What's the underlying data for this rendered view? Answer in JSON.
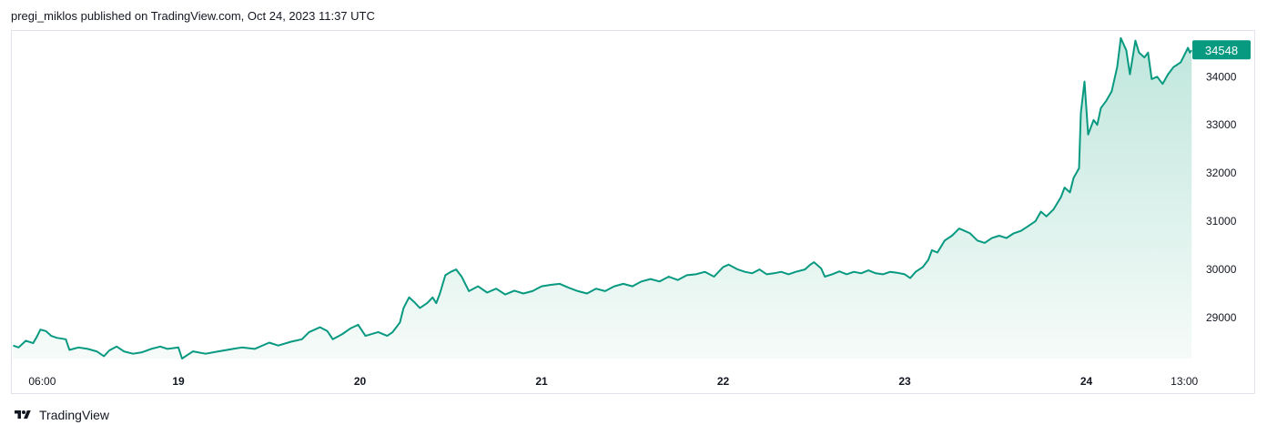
{
  "header": {
    "attribution": "pregi_miklos published on TradingView.com, Oct 24, 2023 11:37 UTC"
  },
  "footer": {
    "brand": "TradingView",
    "logo_icon": "tradingview-logo-icon"
  },
  "colors": {
    "line": "#089981",
    "fill_top": "#bfe6dc",
    "fill_bottom": "#f6fbf9",
    "badge": "#089981",
    "badge_text": "#ffffff",
    "text": "#131722",
    "border": "#e0e3eb"
  },
  "chart_data": {
    "type": "area",
    "title": "",
    "xlabel": "",
    "ylabel": "",
    "ylim": [
      28150,
      34950
    ],
    "y_ticks": [
      29000,
      30000,
      31000,
      32000,
      33000,
      34000
    ],
    "x_ticks": [
      {
        "label": "06:00",
        "x": 0.25,
        "bold": false
      },
      {
        "label": "19",
        "x": 1.0,
        "bold": true
      },
      {
        "label": "20",
        "x": 2.0,
        "bold": true
      },
      {
        "label": "21",
        "x": 3.0,
        "bold": true
      },
      {
        "label": "22",
        "x": 4.0,
        "bold": true
      },
      {
        "label": "23",
        "x": 5.0,
        "bold": true
      },
      {
        "label": "24",
        "x": 6.0,
        "bold": true
      },
      {
        "label": "13:00",
        "x": 6.54,
        "bold": false
      }
    ],
    "x_unit": "days since Oct 18 00:00 UTC",
    "last_price": 34548,
    "points": [
      [
        0.09,
        28420
      ],
      [
        0.12,
        28380
      ],
      [
        0.16,
        28520
      ],
      [
        0.2,
        28470
      ],
      [
        0.22,
        28600
      ],
      [
        0.24,
        28750
      ],
      [
        0.27,
        28720
      ],
      [
        0.3,
        28620
      ],
      [
        0.33,
        28580
      ],
      [
        0.38,
        28550
      ],
      [
        0.4,
        28330
      ],
      [
        0.45,
        28380
      ],
      [
        0.5,
        28350
      ],
      [
        0.55,
        28300
      ],
      [
        0.59,
        28200
      ],
      [
        0.62,
        28320
      ],
      [
        0.66,
        28400
      ],
      [
        0.7,
        28300
      ],
      [
        0.75,
        28250
      ],
      [
        0.8,
        28280
      ],
      [
        0.85,
        28350
      ],
      [
        0.9,
        28400
      ],
      [
        0.94,
        28350
      ],
      [
        1.0,
        28380
      ],
      [
        1.02,
        28150
      ],
      [
        1.08,
        28300
      ],
      [
        1.15,
        28250
      ],
      [
        1.22,
        28300
      ],
      [
        1.3,
        28350
      ],
      [
        1.35,
        28380
      ],
      [
        1.42,
        28350
      ],
      [
        1.5,
        28480
      ],
      [
        1.55,
        28420
      ],
      [
        1.62,
        28500
      ],
      [
        1.68,
        28550
      ],
      [
        1.72,
        28700
      ],
      [
        1.78,
        28800
      ],
      [
        1.82,
        28720
      ],
      [
        1.85,
        28550
      ],
      [
        1.9,
        28650
      ],
      [
        1.95,
        28780
      ],
      [
        1.99,
        28850
      ],
      [
        2.03,
        28620
      ],
      [
        2.1,
        28700
      ],
      [
        2.15,
        28620
      ],
      [
        2.18,
        28700
      ],
      [
        2.22,
        28900
      ],
      [
        2.24,
        29200
      ],
      [
        2.27,
        29420
      ],
      [
        2.3,
        29320
      ],
      [
        2.33,
        29200
      ],
      [
        2.37,
        29300
      ],
      [
        2.4,
        29420
      ],
      [
        2.42,
        29300
      ],
      [
        2.44,
        29500
      ],
      [
        2.47,
        29880
      ],
      [
        2.5,
        29950
      ],
      [
        2.53,
        30000
      ],
      [
        2.56,
        29850
      ],
      [
        2.6,
        29550
      ],
      [
        2.65,
        29650
      ],
      [
        2.7,
        29520
      ],
      [
        2.75,
        29600
      ],
      [
        2.8,
        29480
      ],
      [
        2.85,
        29560
      ],
      [
        2.9,
        29500
      ],
      [
        2.95,
        29550
      ],
      [
        3.0,
        29650
      ],
      [
        3.05,
        29680
      ],
      [
        3.1,
        29700
      ],
      [
        3.15,
        29620
      ],
      [
        3.2,
        29550
      ],
      [
        3.25,
        29500
      ],
      [
        3.3,
        29600
      ],
      [
        3.35,
        29550
      ],
      [
        3.4,
        29650
      ],
      [
        3.45,
        29700
      ],
      [
        3.5,
        29650
      ],
      [
        3.55,
        29750
      ],
      [
        3.6,
        29800
      ],
      [
        3.65,
        29750
      ],
      [
        3.7,
        29850
      ],
      [
        3.75,
        29780
      ],
      [
        3.8,
        29880
      ],
      [
        3.85,
        29900
      ],
      [
        3.9,
        29950
      ],
      [
        3.95,
        29850
      ],
      [
        4.0,
        30050
      ],
      [
        4.03,
        30100
      ],
      [
        4.08,
        30000
      ],
      [
        4.12,
        29950
      ],
      [
        4.16,
        29920
      ],
      [
        4.2,
        30000
      ],
      [
        4.24,
        29900
      ],
      [
        4.28,
        29920
      ],
      [
        4.32,
        29950
      ],
      [
        4.36,
        29900
      ],
      [
        4.4,
        29950
      ],
      [
        4.45,
        30000
      ],
      [
        4.48,
        30100
      ],
      [
        4.5,
        30150
      ],
      [
        4.54,
        30020
      ],
      [
        4.56,
        29850
      ],
      [
        4.6,
        29900
      ],
      [
        4.64,
        29960
      ],
      [
        4.68,
        29900
      ],
      [
        4.72,
        29950
      ],
      [
        4.76,
        29920
      ],
      [
        4.8,
        29980
      ],
      [
        4.84,
        29920
      ],
      [
        4.88,
        29900
      ],
      [
        4.92,
        29950
      ],
      [
        4.96,
        29930
      ],
      [
        5.0,
        29900
      ],
      [
        5.03,
        29820
      ],
      [
        5.06,
        29950
      ],
      [
        5.1,
        30050
      ],
      [
        5.13,
        30200
      ],
      [
        5.15,
        30400
      ],
      [
        5.18,
        30350
      ],
      [
        5.22,
        30600
      ],
      [
        5.26,
        30700
      ],
      [
        5.3,
        30850
      ],
      [
        5.33,
        30800
      ],
      [
        5.36,
        30750
      ],
      [
        5.4,
        30600
      ],
      [
        5.44,
        30550
      ],
      [
        5.48,
        30650
      ],
      [
        5.52,
        30700
      ],
      [
        5.56,
        30650
      ],
      [
        5.6,
        30750
      ],
      [
        5.64,
        30800
      ],
      [
        5.68,
        30900
      ],
      [
        5.72,
        31000
      ],
      [
        5.75,
        31200
      ],
      [
        5.78,
        31100
      ],
      [
        5.82,
        31250
      ],
      [
        5.86,
        31500
      ],
      [
        5.88,
        31700
      ],
      [
        5.91,
        31600
      ],
      [
        5.93,
        31900
      ],
      [
        5.96,
        32100
      ],
      [
        5.97,
        33250
      ],
      [
        5.99,
        33900
      ],
      [
        6.01,
        32800
      ],
      [
        6.04,
        33100
      ],
      [
        6.06,
        33000
      ],
      [
        6.08,
        33350
      ],
      [
        6.11,
        33500
      ],
      [
        6.14,
        33700
      ],
      [
        6.17,
        34200
      ],
      [
        6.19,
        34800
      ],
      [
        6.22,
        34550
      ],
      [
        6.24,
        34050
      ],
      [
        6.27,
        34750
      ],
      [
        6.29,
        34500
      ],
      [
        6.32,
        34400
      ],
      [
        6.34,
        34500
      ],
      [
        6.36,
        33950
      ],
      [
        6.39,
        34000
      ],
      [
        6.42,
        33850
      ],
      [
        6.45,
        34050
      ],
      [
        6.48,
        34200
      ],
      [
        6.5,
        34250
      ],
      [
        6.52,
        34300
      ],
      [
        6.54,
        34450
      ],
      [
        6.56,
        34600
      ],
      [
        6.57,
        34500
      ],
      [
        6.58,
        34548
      ]
    ]
  }
}
